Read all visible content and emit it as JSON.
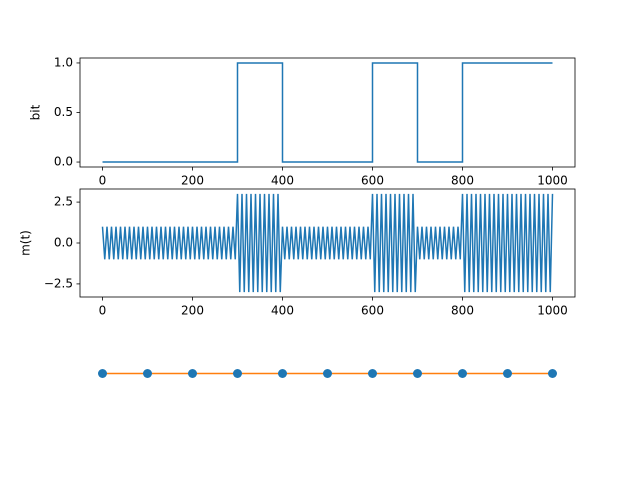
{
  "chart_data": [
    {
      "type": "line",
      "y_label": "bit",
      "color": "#1f77b4",
      "x": [
        0,
        300,
        300,
        400,
        400,
        600,
        600,
        700,
        700,
        800,
        800,
        1000
      ],
      "values": [
        0,
        0,
        1,
        1,
        0,
        0,
        1,
        1,
        0,
        0,
        1,
        1
      ],
      "xlim": [
        -50,
        1050
      ],
      "ylim": [
        -0.05,
        1.05
      ],
      "xticks": [
        0,
        200,
        400,
        600,
        800,
        1000
      ],
      "yticks": [
        {
          "value": 0,
          "label": "0.0"
        },
        {
          "value": 0.5,
          "label": "0.5"
        },
        {
          "value": 1,
          "label": "1.0"
        }
      ],
      "axis": true
    },
    {
      "type": "line",
      "y_label": "m(t)",
      "color": "#1f77b4",
      "x": [
        0,
        5,
        10,
        15,
        20,
        25,
        30,
        35,
        40,
        45,
        50,
        55,
        60,
        65,
        70,
        75,
        80,
        85,
        90,
        95,
        100,
        105,
        110,
        115,
        120,
        125,
        130,
        135,
        140,
        145,
        150,
        155,
        160,
        165,
        170,
        175,
        180,
        185,
        190,
        195,
        200,
        205,
        210,
        215,
        220,
        225,
        230,
        235,
        240,
        245,
        250,
        255,
        260,
        265,
        270,
        275,
        280,
        285,
        290,
        295,
        300,
        305,
        310,
        315,
        320,
        325,
        330,
        335,
        340,
        345,
        350,
        355,
        360,
        365,
        370,
        375,
        380,
        385,
        390,
        395,
        400,
        405,
        410,
        415,
        420,
        425,
        430,
        435,
        440,
        445,
        450,
        455,
        460,
        465,
        470,
        475,
        480,
        485,
        490,
        495,
        500,
        505,
        510,
        515,
        520,
        525,
        530,
        535,
        540,
        545,
        550,
        555,
        560,
        565,
        570,
        575,
        580,
        585,
        590,
        595,
        600,
        605,
        610,
        615,
        620,
        625,
        630,
        635,
        640,
        645,
        650,
        655,
        660,
        665,
        670,
        675,
        680,
        685,
        690,
        695,
        700,
        705,
        710,
        715,
        720,
        725,
        730,
        735,
        740,
        745,
        750,
        755,
        760,
        765,
        770,
        775,
        780,
        785,
        790,
        795,
        800,
        805,
        810,
        815,
        820,
        825,
        830,
        835,
        840,
        845,
        850,
        855,
        860,
        865,
        870,
        875,
        880,
        885,
        890,
        895,
        900,
        905,
        910,
        915,
        920,
        925,
        930,
        935,
        940,
        945,
        950,
        955,
        960,
        965,
        970,
        975,
        980,
        985,
        990,
        995,
        1000
      ],
      "values": [
        1,
        -1,
        1,
        -1,
        1,
        -1,
        1,
        -1,
        1,
        -1,
        1,
        -1,
        1,
        -1,
        1,
        -1,
        1,
        -1,
        1,
        -1,
        1,
        -1,
        1,
        -1,
        1,
        -1,
        1,
        -1,
        1,
        -1,
        1,
        -1,
        1,
        -1,
        1,
        -1,
        1,
        -1,
        1,
        -1,
        1,
        -1,
        1,
        -1,
        1,
        -1,
        1,
        -1,
        1,
        -1,
        1,
        -1,
        1,
        -1,
        1,
        -1,
        1,
        -1,
        1,
        -1,
        3,
        -3,
        3,
        -3,
        3,
        -3,
        3,
        -3,
        3,
        -3,
        3,
        -3,
        3,
        -3,
        3,
        -3,
        3,
        -3,
        3,
        -3,
        1,
        -1,
        1,
        -1,
        1,
        -1,
        1,
        -1,
        1,
        -1,
        1,
        -1,
        1,
        -1,
        1,
        -1,
        1,
        -1,
        1,
        -1,
        1,
        -1,
        1,
        -1,
        1,
        -1,
        1,
        -1,
        1,
        -1,
        1,
        -1,
        1,
        -1,
        1,
        -1,
        1,
        -1,
        1,
        -1,
        3,
        -3,
        3,
        -3,
        3,
        -3,
        3,
        -3,
        3,
        -3,
        3,
        -3,
        3,
        -3,
        3,
        -3,
        3,
        -3,
        3,
        -3,
        1,
        -1,
        1,
        -1,
        1,
        -1,
        1,
        -1,
        1,
        -1,
        1,
        -1,
        1,
        -1,
        1,
        -1,
        1,
        -1,
        1,
        -1,
        3,
        -3,
        3,
        -3,
        3,
        -3,
        3,
        -3,
        3,
        -3,
        3,
        -3,
        3,
        -3,
        3,
        -3,
        3,
        -3,
        3,
        -3,
        3,
        -3,
        3,
        -3,
        3,
        -3,
        3,
        -3,
        3,
        -3,
        3,
        -3,
        3,
        -3,
        3,
        -3,
        3,
        -3,
        3,
        -3,
        3
      ],
      "xlim": [
        -50,
        1050
      ],
      "ylim": [
        -3.3,
        3.3
      ],
      "xticks": [
        0,
        200,
        400,
        600,
        800,
        1000
      ],
      "yticks": [
        {
          "value": -2.5,
          "label": "−2.5"
        },
        {
          "value": 0,
          "label": "0.0"
        },
        {
          "value": 2.5,
          "label": "2.5"
        }
      ],
      "axis": true
    },
    {
      "type": "line",
      "color": "#ff7f0e",
      "marker_color": "#1f77b4",
      "x": [
        0,
        100,
        200,
        300,
        400,
        500,
        600,
        700,
        800,
        900,
        1000
      ],
      "values": [
        0,
        0,
        0,
        0,
        0,
        0,
        0,
        0,
        0,
        0,
        0
      ],
      "xlim": [
        -50,
        1050
      ],
      "ylim": [
        -1,
        1
      ],
      "axis": false
    }
  ]
}
